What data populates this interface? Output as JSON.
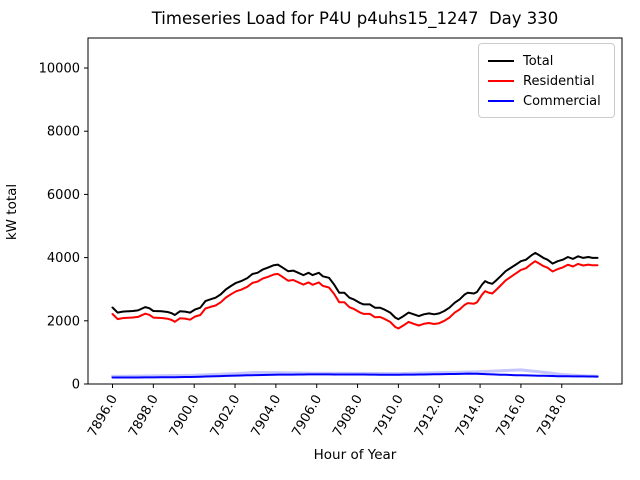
{
  "title": "Timeseries Load for P4U p4uhs15_1247  Day 330",
  "chart_data": {
    "type": "line",
    "title": "Timeseries Load for P4U p4uhs15_1247  Day 330",
    "xlabel": "Hour of Year",
    "ylabel": "kW total",
    "xlim": [
      7894.8,
      7920.95
    ],
    "ylim": [
      0,
      10950
    ],
    "grid": false,
    "x_ticks": [
      7896,
      7898,
      7900,
      7902,
      7904,
      7906,
      7908,
      7910,
      7912,
      7914,
      7916,
      7918
    ],
    "x_tick_labels": [
      "7896.0",
      "7898.0",
      "7900.0",
      "7902.0",
      "7904.0",
      "7906.0",
      "7908.0",
      "7910.0",
      "7912.0",
      "7914.0",
      "7916.0",
      "7918.0"
    ],
    "y_ticks": [
      0,
      2000,
      4000,
      6000,
      8000,
      10000
    ],
    "y_tick_labels": [
      "0",
      "2000",
      "4000",
      "6000",
      "8000",
      "10000"
    ],
    "x": [
      7896.0,
      7896.25,
      7896.5,
      7897.0,
      7897.25,
      7897.6,
      7897.8,
      7898.0,
      7898.4,
      7898.7,
      7898.9,
      7899.05,
      7899.3,
      7899.55,
      7899.8,
      7900.05,
      7900.3,
      7900.55,
      7900.8,
      7901.05,
      7901.3,
      7901.55,
      7901.8,
      7902.05,
      7902.3,
      7902.6,
      7902.85,
      7903.1,
      7903.35,
      7903.6,
      7903.9,
      7904.1,
      7904.3,
      7904.6,
      7904.85,
      7905.1,
      7905.35,
      7905.6,
      7905.8,
      7906.1,
      7906.3,
      7906.6,
      7906.85,
      7907.1,
      7907.35,
      7907.6,
      7907.8,
      7908.1,
      7908.3,
      7908.6,
      7908.85,
      7909.1,
      7909.3,
      7909.6,
      7909.85,
      7910.0,
      7910.25,
      7910.5,
      7910.75,
      7911.0,
      7911.25,
      7911.5,
      7911.75,
      7912.0,
      7912.25,
      7912.5,
      7912.75,
      7913.0,
      7913.25,
      7913.4,
      7913.7,
      7913.85,
      7914.1,
      7914.25,
      7914.4,
      7914.6,
      7914.75,
      7915.0,
      7915.25,
      7915.5,
      7915.75,
      7916.0,
      7916.25,
      7916.5,
      7916.7,
      7916.85,
      7917.1,
      7917.3,
      7917.55,
      7917.8,
      7918.05,
      7918.3,
      7918.55,
      7918.8,
      7919.05,
      7919.3,
      7919.5,
      7919.75
    ],
    "series": [
      {
        "name": "Total",
        "color": "#000000",
        "width": 2,
        "values": [
          2420,
          2260,
          2290,
          2310,
          2330,
          2435,
          2400,
          2310,
          2300,
          2280,
          2240,
          2185,
          2300,
          2290,
          2260,
          2360,
          2415,
          2625,
          2680,
          2730,
          2835,
          2990,
          3100,
          3200,
          3255,
          3350,
          3480,
          3520,
          3620,
          3680,
          3760,
          3780,
          3695,
          3570,
          3590,
          3520,
          3445,
          3520,
          3445,
          3520,
          3410,
          3360,
          3150,
          2890,
          2890,
          2730,
          2680,
          2570,
          2520,
          2520,
          2415,
          2415,
          2360,
          2260,
          2100,
          2050,
          2150,
          2260,
          2205,
          2150,
          2205,
          2235,
          2205,
          2235,
          2310,
          2415,
          2570,
          2680,
          2835,
          2890,
          2865,
          2910,
          3150,
          3255,
          3205,
          3170,
          3255,
          3410,
          3570,
          3675,
          3780,
          3885,
          3935,
          4065,
          4150,
          4095,
          3990,
          3935,
          3810,
          3885,
          3935,
          4020,
          3960,
          4040,
          3990,
          4020,
          3990,
          3990
        ]
      },
      {
        "name": "Residential",
        "color": "#ff0000",
        "width": 2,
        "values": [
          2215,
          2055,
          2085,
          2105,
          2125,
          2225,
          2190,
          2100,
          2090,
          2065,
          2025,
          1970,
          2080,
          2070,
          2035,
          2135,
          2185,
          2390,
          2440,
          2485,
          2585,
          2735,
          2840,
          2935,
          2985,
          3075,
          3200,
          3240,
          3335,
          3390,
          3465,
          3485,
          3400,
          3270,
          3290,
          3220,
          3145,
          3215,
          3140,
          3215,
          3105,
          3055,
          2850,
          2590,
          2590,
          2430,
          2380,
          2270,
          2220,
          2220,
          2115,
          2120,
          2065,
          1965,
          1805,
          1755,
          1855,
          1965,
          1905,
          1850,
          1905,
          1930,
          1900,
          1925,
          2000,
          2100,
          2255,
          2360,
          2510,
          2560,
          2540,
          2585,
          2830,
          2940,
          2895,
          2865,
          2955,
          3115,
          3280,
          3390,
          3500,
          3610,
          3665,
          3795,
          3885,
          3830,
          3730,
          3680,
          3560,
          3635,
          3690,
          3775,
          3720,
          3800,
          3750,
          3780,
          3755,
          3755
        ]
      },
      {
        "name": "Commercial",
        "color": "#0000ff",
        "width": 2,
        "values": [
          205,
          205,
          205,
          205,
          206,
          208,
          209,
          210,
          212,
          213,
          214,
          215,
          218,
          221,
          223,
          226,
          231,
          236,
          241,
          246,
          251,
          256,
          261,
          266,
          270,
          274,
          278,
          281,
          285,
          289,
          294,
          296,
          297,
          298,
          299,
          300,
          302,
          303,
          304,
          305,
          305,
          303,
          301,
          300,
          300,
          300,
          300,
          300,
          300,
          299,
          298,
          295,
          295,
          295,
          295,
          295,
          296,
          297,
          299,
          300,
          302,
          305,
          307,
          310,
          312,
          315,
          317,
          320,
          325,
          328,
          326,
          323,
          318,
          313,
          310,
          305,
          301,
          295,
          290,
          285,
          280,
          275,
          271,
          268,
          265,
          263,
          259,
          256,
          252,
          248,
          245,
          243,
          242,
          241,
          240,
          238,
          237,
          235
        ]
      },
      {
        "name": "commercial-glow",
        "color": "#8080ff",
        "width": 3,
        "opacity": 0.45,
        "legend": false,
        "x": [
          7896,
          7898,
          7900,
          7902,
          7903,
          7904,
          7906,
          7908,
          7910,
          7912,
          7913,
          7914,
          7915,
          7916,
          7917,
          7918,
          7919,
          7919.75
        ],
        "values": [
          240,
          255,
          275,
          330,
          365,
          360,
          340,
          335,
          330,
          360,
          370,
          385,
          420,
          445,
          380,
          300,
          260,
          245
        ]
      }
    ],
    "legend": {
      "position": "upper right",
      "entries": [
        "Total",
        "Residential",
        "Commercial"
      ]
    }
  }
}
